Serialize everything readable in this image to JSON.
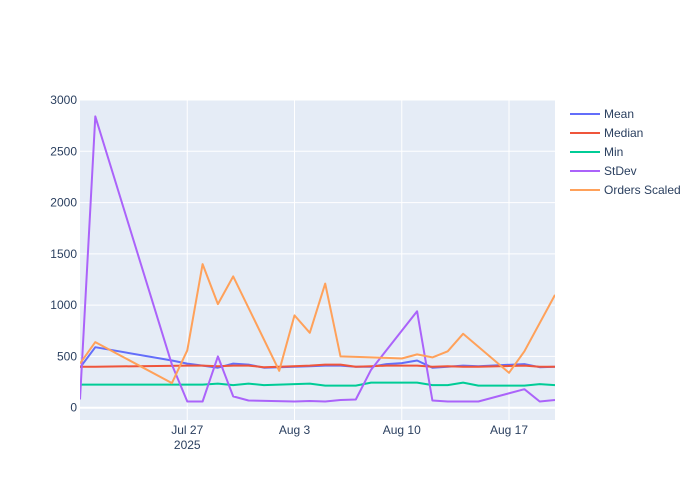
{
  "chart_data": {
    "type": "line",
    "title": "",
    "xlabel": "",
    "ylabel": "",
    "ylim": [
      -120,
      3000
    ],
    "y_ticks": [
      0,
      500,
      1000,
      1500,
      2000,
      2500,
      3000
    ],
    "x_range": [
      "2025-07-20",
      "2025-08-20"
    ],
    "x_ticks": [
      {
        "date": "2025-07-27",
        "label": "Jul 27",
        "sublabel": "2025"
      },
      {
        "date": "2025-08-03",
        "label": "Aug 3",
        "sublabel": ""
      },
      {
        "date": "2025-08-10",
        "label": "Aug 10",
        "sublabel": ""
      },
      {
        "date": "2025-08-17",
        "label": "Aug 17",
        "sublabel": ""
      }
    ],
    "grid": true,
    "legend_position": "right",
    "colors": {
      "plot_bg": "#e5ecf6",
      "grid": "#ffffff"
    },
    "series": [
      {
        "name": "Mean",
        "color": "#636efa",
        "points": [
          [
            "2025-07-20",
            390
          ],
          [
            "2025-07-21",
            590
          ],
          [
            "2025-07-26",
            460
          ],
          [
            "2025-07-27",
            430
          ],
          [
            "2025-07-28",
            410
          ],
          [
            "2025-07-29",
            390
          ],
          [
            "2025-07-30",
            430
          ],
          [
            "2025-07-31",
            420
          ],
          [
            "2025-08-01",
            390
          ],
          [
            "2025-08-02",
            395
          ],
          [
            "2025-08-03",
            400
          ],
          [
            "2025-08-04",
            405
          ],
          [
            "2025-08-05",
            410
          ],
          [
            "2025-08-06",
            410
          ],
          [
            "2025-08-07",
            400
          ],
          [
            "2025-08-08",
            400
          ],
          [
            "2025-08-09",
            425
          ],
          [
            "2025-08-10",
            435
          ],
          [
            "2025-08-11",
            460
          ],
          [
            "2025-08-12",
            390
          ],
          [
            "2025-08-13",
            400
          ],
          [
            "2025-08-14",
            410
          ],
          [
            "2025-08-15",
            405
          ],
          [
            "2025-08-18",
            425
          ],
          [
            "2025-08-19",
            395
          ],
          [
            "2025-08-20",
            400
          ]
        ]
      },
      {
        "name": "Median",
        "color": "#ef553b",
        "points": [
          [
            "2025-07-20",
            400
          ],
          [
            "2025-07-21",
            400
          ],
          [
            "2025-07-27",
            410
          ],
          [
            "2025-07-28",
            410
          ],
          [
            "2025-07-29",
            405
          ],
          [
            "2025-07-30",
            410
          ],
          [
            "2025-07-31",
            410
          ],
          [
            "2025-08-01",
            395
          ],
          [
            "2025-08-02",
            400
          ],
          [
            "2025-08-04",
            410
          ],
          [
            "2025-08-05",
            420
          ],
          [
            "2025-08-06",
            420
          ],
          [
            "2025-08-07",
            400
          ],
          [
            "2025-08-08",
            405
          ],
          [
            "2025-08-09",
            410
          ],
          [
            "2025-08-10",
            410
          ],
          [
            "2025-08-11",
            410
          ],
          [
            "2025-08-12",
            400
          ],
          [
            "2025-08-13",
            405
          ],
          [
            "2025-08-14",
            400
          ],
          [
            "2025-08-15",
            400
          ],
          [
            "2025-08-18",
            410
          ],
          [
            "2025-08-19",
            400
          ],
          [
            "2025-08-20",
            400
          ]
        ]
      },
      {
        "name": "Min",
        "color": "#00cc96",
        "points": [
          [
            "2025-07-20",
            225
          ],
          [
            "2025-07-21",
            225
          ],
          [
            "2025-07-27",
            225
          ],
          [
            "2025-07-28",
            225
          ],
          [
            "2025-07-29",
            235
          ],
          [
            "2025-07-30",
            220
          ],
          [
            "2025-07-31",
            235
          ],
          [
            "2025-08-01",
            220
          ],
          [
            "2025-08-02",
            225
          ],
          [
            "2025-08-04",
            235
          ],
          [
            "2025-08-05",
            215
          ],
          [
            "2025-08-06",
            215
          ],
          [
            "2025-08-07",
            215
          ],
          [
            "2025-08-08",
            245
          ],
          [
            "2025-08-09",
            245
          ],
          [
            "2025-08-11",
            245
          ],
          [
            "2025-08-12",
            220
          ],
          [
            "2025-08-13",
            220
          ],
          [
            "2025-08-14",
            245
          ],
          [
            "2025-08-15",
            215
          ],
          [
            "2025-08-18",
            215
          ],
          [
            "2025-08-19",
            230
          ],
          [
            "2025-08-20",
            220
          ]
        ]
      },
      {
        "name": "StDev",
        "color": "#ab63fa",
        "points": [
          [
            "2025-07-20",
            80
          ],
          [
            "2025-07-21",
            2840
          ],
          [
            "2025-07-26",
            420
          ],
          [
            "2025-07-27",
            60
          ],
          [
            "2025-07-28",
            60
          ],
          [
            "2025-07-29",
            500
          ],
          [
            "2025-07-30",
            110
          ],
          [
            "2025-07-31",
            70
          ],
          [
            "2025-08-03",
            60
          ],
          [
            "2025-08-04",
            65
          ],
          [
            "2025-08-05",
            60
          ],
          [
            "2025-08-06",
            75
          ],
          [
            "2025-08-07",
            80
          ],
          [
            "2025-08-08",
            370
          ],
          [
            "2025-08-11",
            940
          ],
          [
            "2025-08-12",
            70
          ],
          [
            "2025-08-13",
            60
          ],
          [
            "2025-08-14",
            60
          ],
          [
            "2025-08-15",
            60
          ],
          [
            "2025-08-18",
            180
          ],
          [
            "2025-08-19",
            60
          ],
          [
            "2025-08-20",
            75
          ]
        ]
      },
      {
        "name": "Orders Scaled",
        "color": "#ffa15a",
        "points": [
          [
            "2025-07-20",
            430
          ],
          [
            "2025-07-21",
            640
          ],
          [
            "2025-07-26",
            240
          ],
          [
            "2025-07-27",
            560
          ],
          [
            "2025-07-28",
            1400
          ],
          [
            "2025-07-29",
            1010
          ],
          [
            "2025-07-30",
            1280
          ],
          [
            "2025-08-02",
            360
          ],
          [
            "2025-08-03",
            900
          ],
          [
            "2025-08-04",
            730
          ],
          [
            "2025-08-05",
            1210
          ],
          [
            "2025-08-06",
            500
          ],
          [
            "2025-08-07",
            495
          ],
          [
            "2025-08-08",
            490
          ],
          [
            "2025-08-09",
            485
          ],
          [
            "2025-08-10",
            480
          ],
          [
            "2025-08-11",
            520
          ],
          [
            "2025-08-12",
            490
          ],
          [
            "2025-08-13",
            550
          ],
          [
            "2025-08-14",
            720
          ],
          [
            "2025-08-17",
            340
          ],
          [
            "2025-08-18",
            550
          ],
          [
            "2025-08-20",
            1100
          ]
        ]
      }
    ]
  }
}
